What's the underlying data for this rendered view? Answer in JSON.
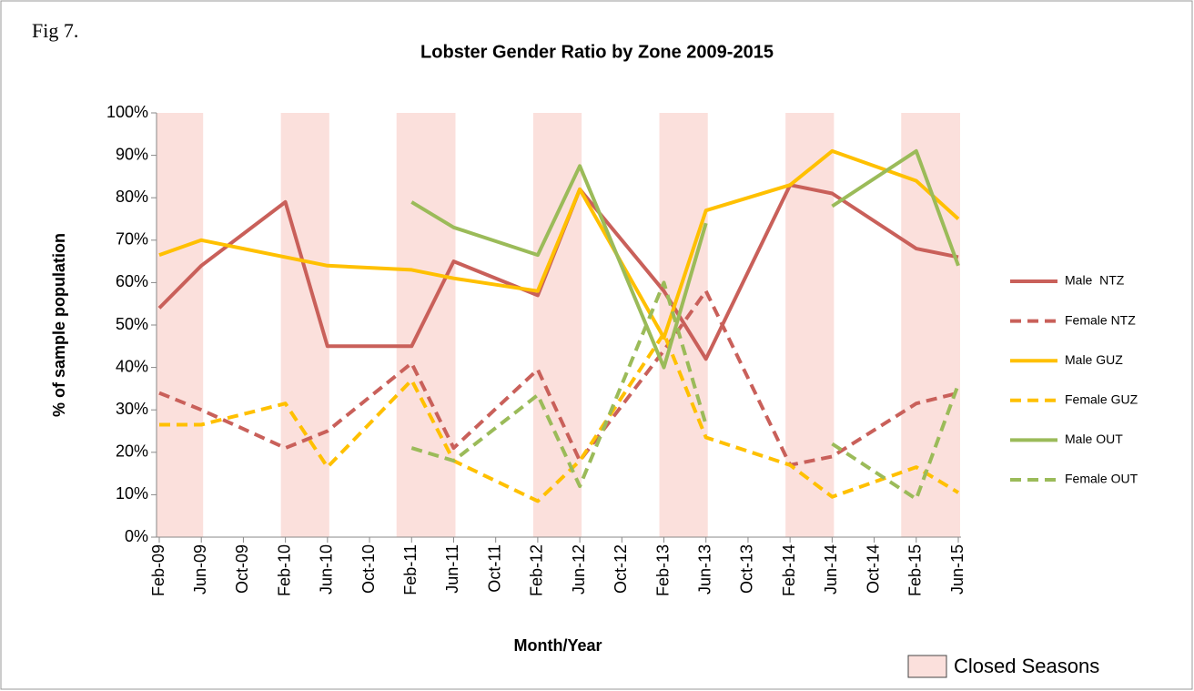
{
  "chart_data": {
    "type": "line",
    "figure_label": "Fig 7.",
    "title": "Lobster Gender Ratio by Zone 2009-2015",
    "x_label": "Month/Year",
    "y_label": "% of sample population",
    "x": [
      "Feb-09",
      "Jun-09",
      "Feb-10",
      "Jun-10",
      "Feb-11",
      "Jun-11",
      "Feb-12",
      "Jun-12",
      "Feb-13",
      "Jun-13",
      "Feb-14",
      "Jun-14",
      "Feb-15",
      "Jun-15"
    ],
    "xlim": [
      "Feb-09",
      "Jun-15"
    ],
    "xticks": [
      "Feb-09",
      "Jun-09",
      "Oct-09",
      "Feb-10",
      "Jun-10",
      "Oct-10",
      "Feb-11",
      "Jun-11",
      "Oct-11",
      "Feb-12",
      "Jun-12",
      "Oct-12",
      "Feb-13",
      "Jun-13",
      "Oct-13",
      "Feb-14",
      "Jun-14",
      "Oct-14",
      "Feb-15",
      "Jun-15"
    ],
    "ylim": [
      0,
      100
    ],
    "yticks": [
      {
        "value": 0,
        "label": "0%"
      },
      {
        "value": 10,
        "label": "10%"
      },
      {
        "value": 20,
        "label": "20%"
      },
      {
        "value": 30,
        "label": "30%"
      },
      {
        "value": 40,
        "label": "40%"
      },
      {
        "value": 50,
        "label": "50%"
      },
      {
        "value": 60,
        "label": "60%"
      },
      {
        "value": 70,
        "label": "70%"
      },
      {
        "value": 80,
        "label": "80%"
      },
      {
        "value": 90,
        "label": "90%"
      },
      {
        "value": 100,
        "label": "100%"
      }
    ],
    "closed_seasons": {
      "label": "Closed Seasons",
      "color": "#fbe0dc",
      "ranges": [
        [
          "Feb-09",
          "Jun-09"
        ],
        [
          "Feb-10",
          "Jun-10"
        ],
        [
          "Jan-11",
          "Jun-11"
        ],
        [
          "Feb-12",
          "Jun-12"
        ],
        [
          "Feb-13",
          "Jun-13"
        ],
        [
          "Feb-14",
          "Jun-14"
        ],
        [
          "Jan-15",
          "Jun-15"
        ]
      ]
    },
    "series": [
      {
        "name": "Male  NTZ",
        "color": "#c9605a",
        "dashed": false,
        "values": [
          54,
          64,
          79,
          45,
          45,
          65,
          57,
          82,
          58,
          42,
          83,
          81,
          68,
          66
        ]
      },
      {
        "name": "Female NTZ",
        "color": "#c9605a",
        "dashed": true,
        "values": [
          34,
          30,
          21,
          25,
          41,
          21,
          39.5,
          18,
          44,
          58,
          17,
          19,
          31.5,
          34
        ]
      },
      {
        "name": "Male GUZ",
        "color": "#ffc000",
        "dashed": false,
        "values": [
          66.5,
          70,
          66,
          64,
          63,
          61,
          58,
          82,
          47,
          77,
          83,
          91,
          84,
          75
        ]
      },
      {
        "name": "Female GUZ",
        "color": "#ffc000",
        "dashed": true,
        "values": [
          26.5,
          26.5,
          31.5,
          16.5,
          37,
          18,
          8.5,
          18,
          48,
          23.5,
          17,
          9.5,
          16.5,
          10.5
        ]
      },
      {
        "name": "Male OUT",
        "color": "#9bbb59",
        "dashed": false,
        "values": [
          null,
          null,
          null,
          null,
          79,
          73,
          66.5,
          87.5,
          40,
          74,
          null,
          78,
          91,
          64
        ]
      },
      {
        "name": "Female OUT",
        "color": "#9bbb59",
        "dashed": true,
        "values": [
          null,
          null,
          null,
          null,
          21,
          18,
          33.5,
          12,
          60,
          26.5,
          null,
          22,
          9,
          36
        ]
      }
    ]
  }
}
